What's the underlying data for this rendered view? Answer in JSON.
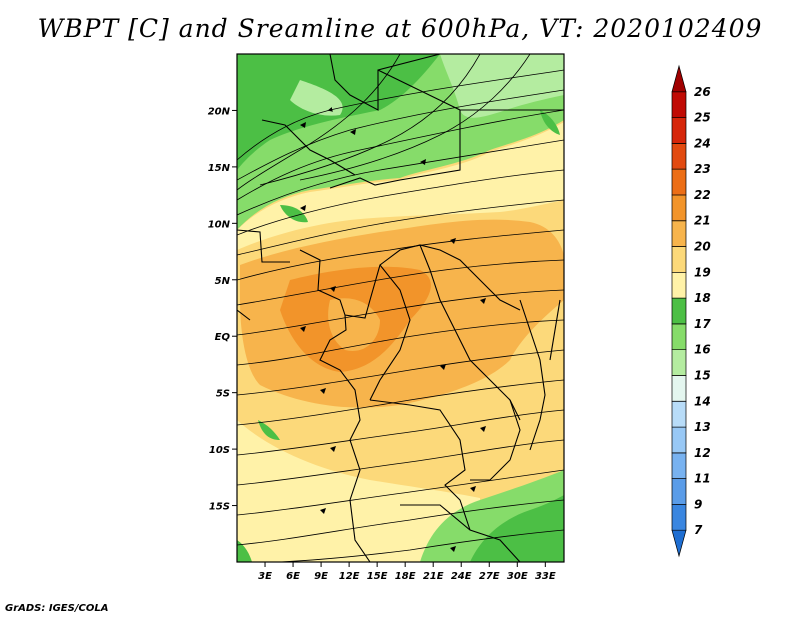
{
  "title": "WBPT [C] and Sreamline at 600hPa, VT: 2020102409",
  "credit": "GrADS: IGES/COLA",
  "map": {
    "lon_range": [
      0,
      35
    ],
    "lat_range": [
      -20,
      25
    ],
    "x_ticks": [
      "3E",
      "6E",
      "9E",
      "12E",
      "15E",
      "18E",
      "21E",
      "24E",
      "27E",
      "30E",
      "33E"
    ],
    "x_tick_values": [
      3,
      6,
      9,
      12,
      15,
      18,
      21,
      24,
      27,
      30,
      33
    ],
    "y_ticks": [
      "20N",
      "15N",
      "10N",
      "5N",
      "EQ",
      "5S",
      "10S",
      "15S"
    ],
    "y_tick_values": [
      20,
      15,
      10,
      5,
      0,
      -5,
      -10,
      -15
    ]
  },
  "colorbar": {
    "labels": [
      "7",
      "9",
      "11",
      "12",
      "13",
      "14",
      "15",
      "16",
      "17",
      "18",
      "19",
      "20",
      "21",
      "22",
      "23",
      "24",
      "25",
      "26"
    ],
    "colors": [
      "#1e6ed2",
      "#3a86e0",
      "#5a9ce8",
      "#78b2f0",
      "#98c8f5",
      "#b8dcf8",
      "#e4f6ef",
      "#b4eca0",
      "#86dc6a",
      "#4cbf45",
      "#fff2a8",
      "#fcd97a",
      "#f7b44c",
      "#f2942a",
      "#ec6e16",
      "#e24a10",
      "#d6260a",
      "#c00a04",
      "#a00000"
    ]
  }
}
